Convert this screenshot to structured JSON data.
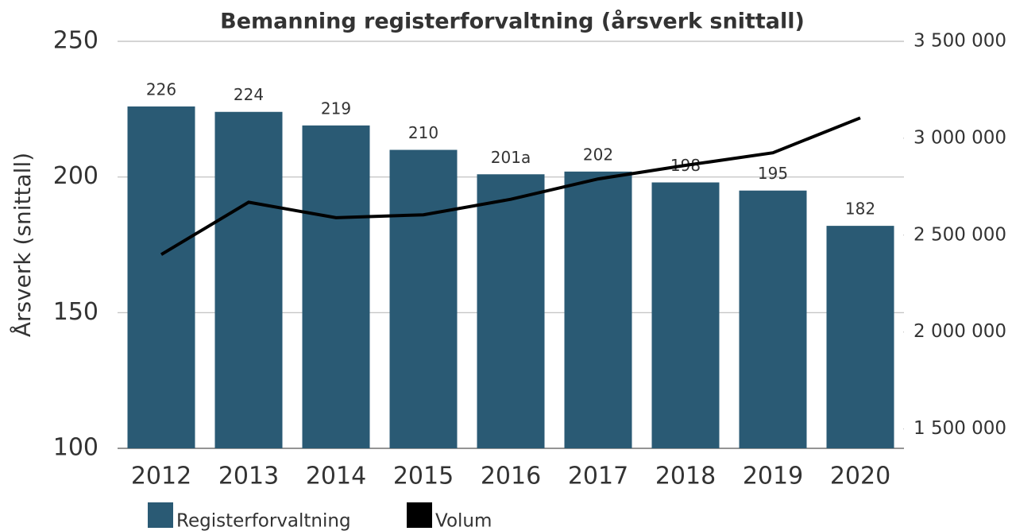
{
  "chart_data": {
    "type": "bar+line",
    "title": "Bemanning registerforvaltning (årsverk snittall)",
    "y_label": "Årsverk (snittall)",
    "categories": [
      "2012",
      "2013",
      "2014",
      "2015",
      "2016",
      "2017",
      "2018",
      "2019",
      "2020"
    ],
    "series": [
      {
        "name": "Registerforvaltning",
        "type": "bar",
        "color": "#2a5a74",
        "axis": "y",
        "values": [
          226,
          224,
          219,
          210,
          201,
          202,
          198,
          195,
          182
        ],
        "value_labels": [
          "226",
          "224",
          "219",
          "210",
          "201a",
          "202",
          "198",
          "195",
          "182"
        ]
      },
      {
        "name": "Volum",
        "type": "line",
        "color": "#000000",
        "axis": "y2",
        "values": [
          2400000,
          2670000,
          2590000,
          2605000,
          2685000,
          2790000,
          2860000,
          2925000,
          3105000
        ]
      }
    ],
    "ylim": [
      100,
      250
    ],
    "yticks": [
      100,
      150,
      200,
      250
    ],
    "y2lim": [
      1400000,
      3500000
    ],
    "y2ticks": [
      {
        "value": 1500000,
        "label": "1 500 000"
      },
      {
        "value": 2000000,
        "label": "2 000 000"
      },
      {
        "value": 2500000,
        "label": "2 500 000"
      },
      {
        "value": 3000000,
        "label": "3 000 000"
      },
      {
        "value": 3500000,
        "label": "3 500 000"
      }
    ],
    "grid": true,
    "legend": "bottom"
  }
}
